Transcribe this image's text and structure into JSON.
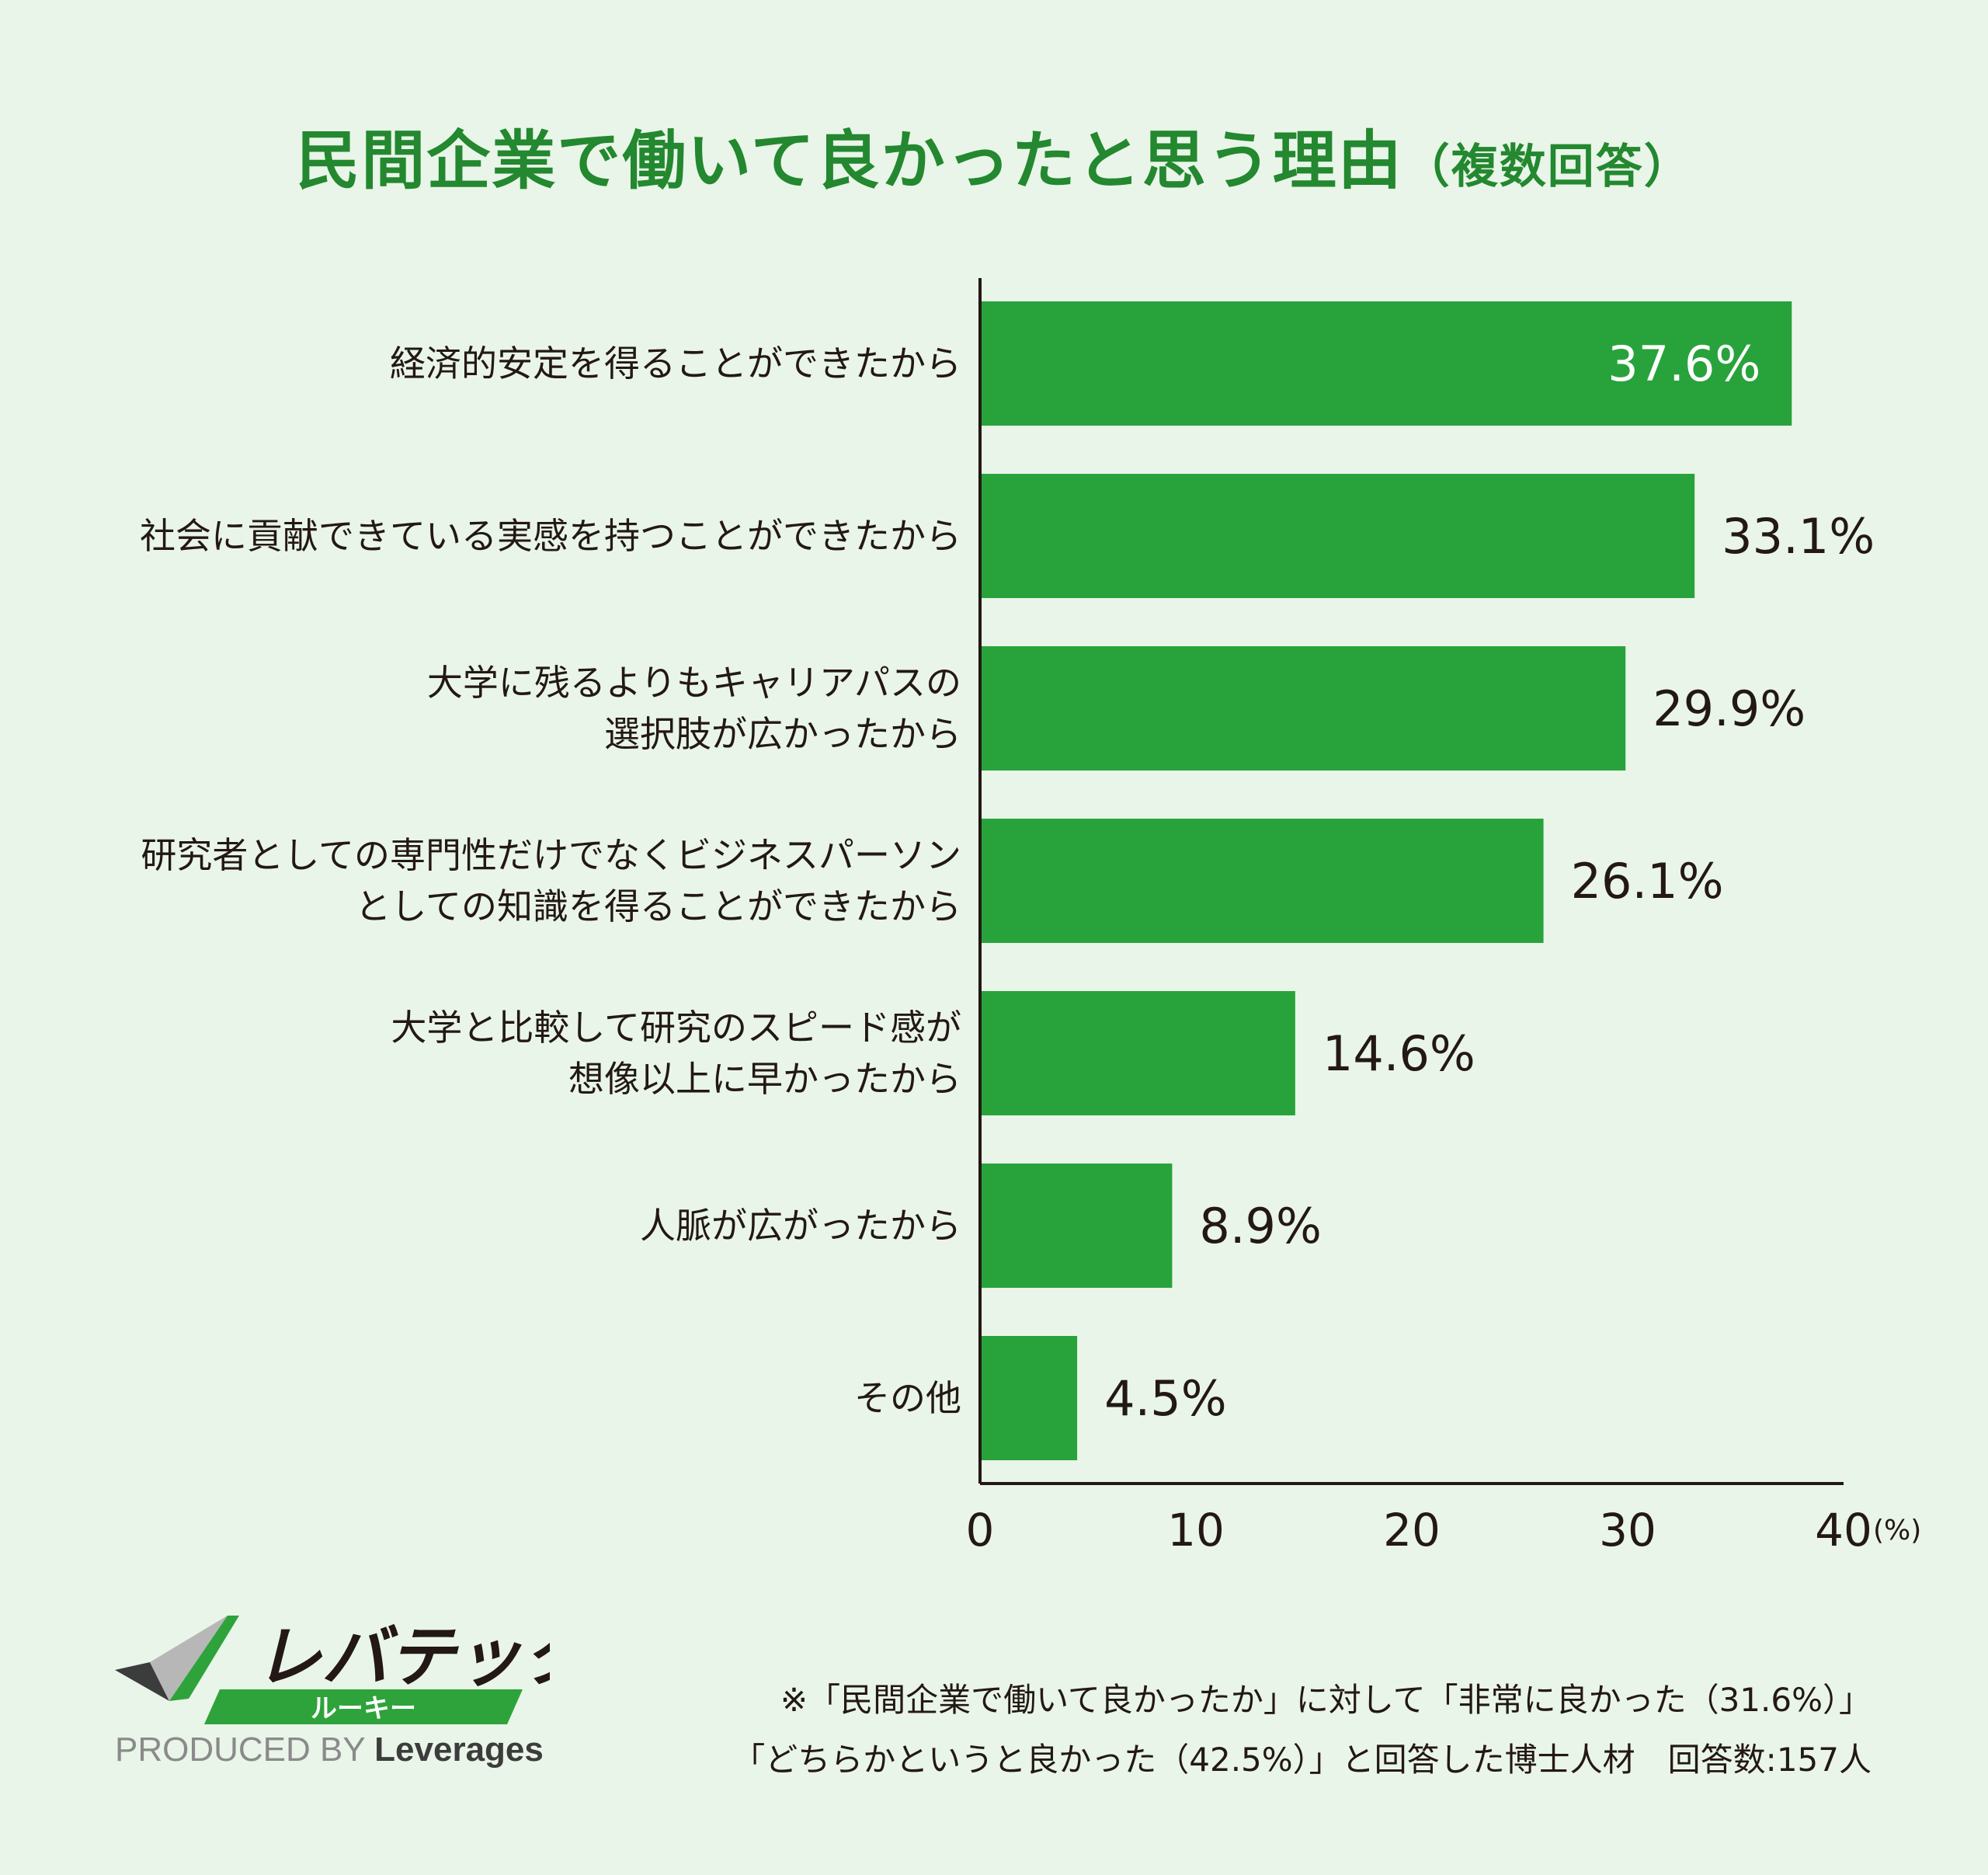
{
  "title": "民間企業で働いて良かったと思う理由",
  "title_sub": "（複数回答）",
  "chart_data": {
    "type": "bar",
    "orientation": "horizontal",
    "categories": [
      [
        "経済的安定を得ることができたから"
      ],
      [
        "社会に貢献できている実感を持つことができたから"
      ],
      [
        "大学に残るよりもキャリアパスの",
        "選択肢が広かったから"
      ],
      [
        "研究者としての専門性だけでなくビジネスパーソン",
        "としての知識を得ることができたから"
      ],
      [
        "大学と比較して研究のスピード感が",
        "想像以上に早かったから"
      ],
      [
        "人脈が広がったから"
      ],
      [
        "その他"
      ]
    ],
    "values": [
      37.6,
      33.1,
      29.9,
      26.1,
      14.6,
      8.9,
      4.5
    ],
    "value_labels": [
      "37.6%",
      "33.1%",
      "29.9%",
      "26.1%",
      "14.6%",
      "8.9%",
      "4.5%"
    ],
    "xlim": [
      0,
      40
    ],
    "xticks": [
      "0",
      "10",
      "20",
      "30",
      "40"
    ],
    "xunit": "(%)",
    "bar_color": "#28a33b",
    "grid": false
  },
  "logo": {
    "name": "レバテック",
    "sub": "ルーキー",
    "colors": {
      "green": "#2ea33b",
      "dark": "#231815"
    }
  },
  "produced_by": "PRODUCED BY",
  "brand": "Leverages",
  "notes": [
    "※「民間企業で働いて良かったか」に対して「非常に良かった（31.6%）」",
    "「どちらかというと良かった（42.5%）」と回答した博士人材　回答数:157人"
  ]
}
